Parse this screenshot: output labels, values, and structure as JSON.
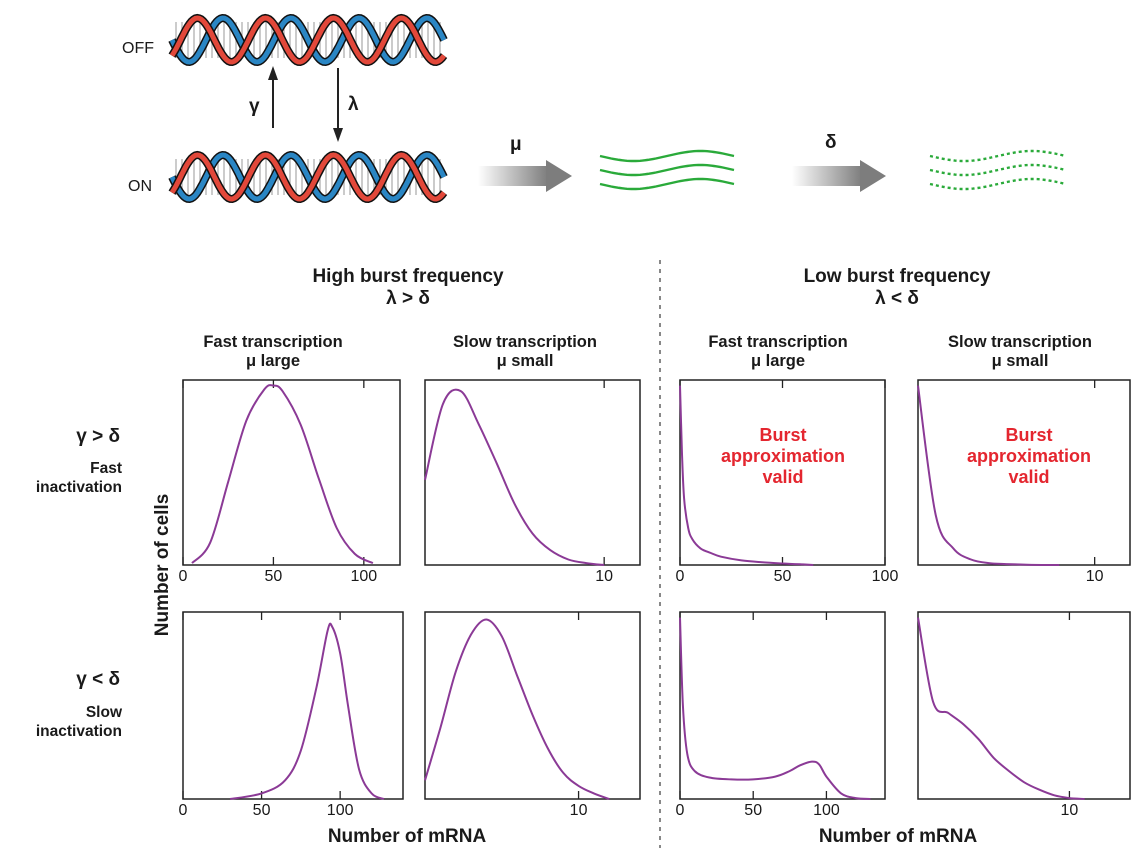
{
  "top": {
    "state_off": "OFF",
    "state_on": "ON",
    "rate_activation": "γ",
    "rate_inactivation": "λ",
    "rate_transcription": "μ",
    "rate_degradation": "δ"
  },
  "columns": {
    "left": {
      "title": "High burst frequency",
      "condition": "λ > δ"
    },
    "right": {
      "title": "Low burst frequency",
      "condition": "λ < δ"
    },
    "fast": {
      "title": "Fast transcription",
      "condition": "μ large"
    },
    "slow": {
      "title": "Slow transcription",
      "condition": "μ small"
    }
  },
  "rows": {
    "top": {
      "condition": "γ > δ",
      "label": "Fast\ninactivation"
    },
    "bottom": {
      "condition": "γ < δ",
      "label": "Slow\ninactivation"
    }
  },
  "axes": {
    "ylabel": "Number of cells",
    "xlabel": "Number of mRNA"
  },
  "annotation": "Burst\napproximation\nvalid",
  "colors": {
    "curve": "#8b3a96",
    "mrna": "#2aaa3a",
    "strand_a": "#e2483a",
    "strand_b": "#2a86c4",
    "annotation": "#e4262f"
  },
  "chart_data": [
    {
      "type": "line",
      "panel": "high-fast-fastinact",
      "xlim": [
        0,
        120
      ],
      "xticks": [
        0,
        50,
        100
      ],
      "x": [
        5,
        15,
        25,
        35,
        45,
        50,
        55,
        65,
        75,
        85,
        95,
        105
      ],
      "y": [
        0.01,
        0.12,
        0.45,
        0.78,
        0.95,
        0.97,
        0.94,
        0.76,
        0.47,
        0.2,
        0.06,
        0.01
      ]
    },
    {
      "type": "line",
      "panel": "high-slow-fastinact",
      "xlim": [
        0,
        12
      ],
      "xticks": [
        10
      ],
      "x": [
        0,
        1,
        2,
        3,
        4,
        5,
        6,
        7,
        8,
        9,
        10
      ],
      "y": [
        0.46,
        0.87,
        0.94,
        0.76,
        0.55,
        0.33,
        0.17,
        0.08,
        0.03,
        0.01,
        0.0
      ]
    },
    {
      "type": "line",
      "panel": "high-fast-slowinact",
      "xlim": [
        0,
        140
      ],
      "xticks": [
        0,
        50,
        100
      ],
      "x": [
        30,
        50,
        65,
        75,
        85,
        92,
        95,
        100,
        105,
        112,
        120,
        128
      ],
      "y": [
        0.0,
        0.03,
        0.1,
        0.26,
        0.6,
        0.9,
        0.92,
        0.78,
        0.5,
        0.16,
        0.03,
        0.0
      ]
    },
    {
      "type": "line",
      "panel": "high-slow-slowinact",
      "xlim": [
        0,
        14
      ],
      "xticks": [
        10
      ],
      "x": [
        0,
        1,
        2,
        3,
        4,
        5,
        6,
        7,
        8,
        9,
        10,
        11,
        12
      ],
      "y": [
        0.1,
        0.38,
        0.68,
        0.88,
        0.96,
        0.87,
        0.66,
        0.45,
        0.27,
        0.14,
        0.07,
        0.03,
        0.0
      ]
    },
    {
      "type": "line",
      "panel": "low-fast-fastinact",
      "xlim": [
        0,
        100
      ],
      "xticks": [
        0,
        50,
        100
      ],
      "x": [
        0,
        1,
        2,
        4,
        6,
        10,
        15,
        20,
        30,
        40,
        50,
        60,
        65
      ],
      "y": [
        0.97,
        0.6,
        0.36,
        0.2,
        0.14,
        0.09,
        0.065,
        0.045,
        0.025,
        0.015,
        0.008,
        0.003,
        0.0
      ]
    },
    {
      "type": "line",
      "panel": "low-slow-fastinact",
      "xlim": [
        0,
        12
      ],
      "xticks": [
        10
      ],
      "x": [
        0,
        1,
        2,
        3,
        4,
        5,
        6,
        7,
        8
      ],
      "y": [
        0.97,
        0.27,
        0.09,
        0.03,
        0.01,
        0.005,
        0.002,
        0.0,
        0.0
      ]
    },
    {
      "type": "line",
      "panel": "low-fast-slowinact",
      "xlim": [
        0,
        140
      ],
      "xticks": [
        0,
        50,
        100
      ],
      "x": [
        0,
        2,
        5,
        10,
        20,
        35,
        50,
        65,
        75,
        82,
        90,
        95,
        100,
        110,
        120,
        130
      ],
      "y": [
        0.97,
        0.5,
        0.24,
        0.15,
        0.115,
        0.105,
        0.105,
        0.12,
        0.15,
        0.18,
        0.2,
        0.185,
        0.12,
        0.03,
        0.005,
        0.0
      ]
    },
    {
      "type": "line",
      "panel": "low-slow-slowinact",
      "xlim": [
        0,
        14
      ],
      "xticks": [
        10
      ],
      "x": [
        0,
        1,
        2,
        3,
        4,
        5,
        6,
        7,
        8,
        9,
        10,
        11
      ],
      "y": [
        0.97,
        0.52,
        0.46,
        0.4,
        0.32,
        0.22,
        0.15,
        0.09,
        0.05,
        0.02,
        0.005,
        0.0
      ]
    }
  ]
}
